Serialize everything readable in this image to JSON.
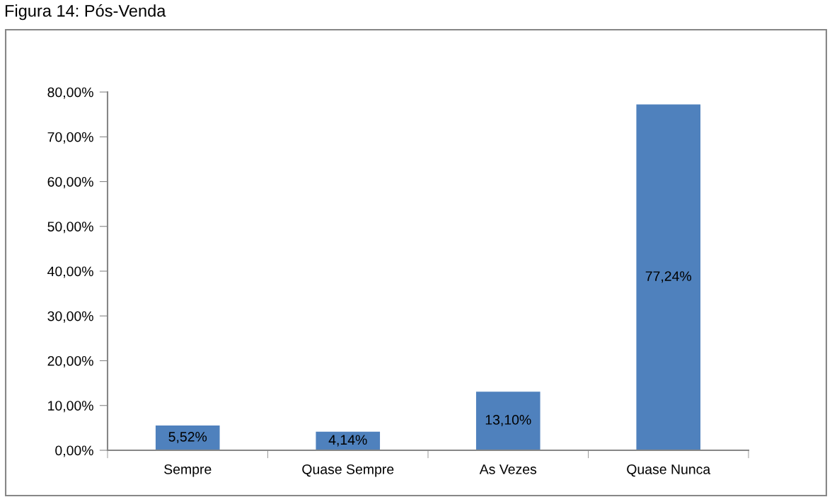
{
  "chart_data": {
    "type": "bar",
    "title": "Figura 14: Pós-Venda",
    "categories": [
      "Sempre",
      "Quase Sempre",
      "As Vezes",
      "Quase Nunca"
    ],
    "values": [
      5.52,
      4.14,
      13.1,
      77.24
    ],
    "color": "#4f81bd",
    "value_labels": [
      "5,52%",
      "4,14%",
      "13,10%",
      "77,24%"
    ],
    "ylim": [
      0,
      80
    ],
    "yticks": [
      {
        "value": 0,
        "label": "0,00%"
      },
      {
        "value": 10,
        "label": "10,00%"
      },
      {
        "value": 20,
        "label": "20,00%"
      },
      {
        "value": 30,
        "label": "30,00%"
      },
      {
        "value": 40,
        "label": "40,00%"
      },
      {
        "value": 50,
        "label": "50,00%"
      },
      {
        "value": 60,
        "label": "60,00%"
      },
      {
        "value": 70,
        "label": "70,00%"
      },
      {
        "value": 80,
        "label": "80,00%"
      }
    ],
    "grid": false
  }
}
